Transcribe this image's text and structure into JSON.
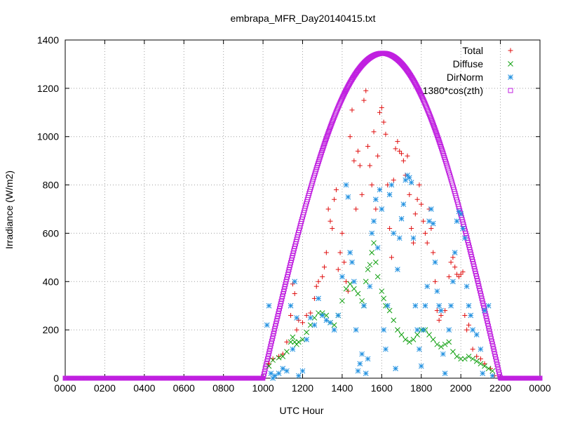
{
  "chart_data": {
    "type": "scatter",
    "title": "embrapa_MFR_Day20140415.txt",
    "xlabel": "UTC Hour",
    "ylabel": "Irradiance (W/m2)",
    "xlim": [
      0,
      2400
    ],
    "ylim": [
      0,
      1400
    ],
    "x_ticks": [
      "0000",
      "0200",
      "0400",
      "0600",
      "0800",
      "1000",
      "1200",
      "1400",
      "1600",
      "1800",
      "2000",
      "2200",
      "0000"
    ],
    "y_ticks": [
      "0",
      "200",
      "400",
      "600",
      "800",
      "1000",
      "1200",
      "1400"
    ],
    "grid": true,
    "legend_position": "top-right",
    "series": [
      {
        "name": "Total",
        "marker": "plus",
        "color": "#e01010",
        "points": [
          [
            1030,
            60
          ],
          [
            1050,
            80
          ],
          [
            1080,
            90
          ],
          [
            1100,
            100
          ],
          [
            1120,
            150
          ],
          [
            1140,
            260
          ],
          [
            1150,
            390
          ],
          [
            1160,
            350
          ],
          [
            1170,
            200
          ],
          [
            1180,
            240
          ],
          [
            1200,
            230
          ],
          [
            1220,
            260
          ],
          [
            1240,
            270
          ],
          [
            1260,
            330
          ],
          [
            1270,
            380
          ],
          [
            1280,
            400
          ],
          [
            1300,
            420
          ],
          [
            1310,
            460
          ],
          [
            1320,
            520
          ],
          [
            1330,
            700
          ],
          [
            1340,
            650
          ],
          [
            1350,
            620
          ],
          [
            1360,
            740
          ],
          [
            1370,
            780
          ],
          [
            1380,
            450
          ],
          [
            1390,
            520
          ],
          [
            1400,
            600
          ],
          [
            1410,
            480
          ],
          [
            1420,
            400
          ],
          [
            1430,
            360
          ],
          [
            1440,
            1000
          ],
          [
            1450,
            1110
          ],
          [
            1460,
            900
          ],
          [
            1470,
            700
          ],
          [
            1480,
            940
          ],
          [
            1490,
            880
          ],
          [
            1500,
            760
          ],
          [
            1510,
            1150
          ],
          [
            1520,
            1190
          ],
          [
            1530,
            960
          ],
          [
            1540,
            880
          ],
          [
            1550,
            800
          ],
          [
            1560,
            1020
          ],
          [
            1570,
            700
          ],
          [
            1580,
            920
          ],
          [
            1590,
            1100
          ],
          [
            1600,
            1120
          ],
          [
            1610,
            1060
          ],
          [
            1620,
            1010
          ],
          [
            1630,
            800
          ],
          [
            1640,
            620
          ],
          [
            1650,
            500
          ],
          [
            1660,
            820
          ],
          [
            1670,
            950
          ],
          [
            1680,
            980
          ],
          [
            1690,
            940
          ],
          [
            1700,
            930
          ],
          [
            1710,
            900
          ],
          [
            1720,
            840
          ],
          [
            1730,
            920
          ],
          [
            1740,
            760
          ],
          [
            1750,
            620
          ],
          [
            1760,
            560
          ],
          [
            1770,
            680
          ],
          [
            1780,
            740
          ],
          [
            1790,
            800
          ],
          [
            1800,
            720
          ],
          [
            1810,
            650
          ],
          [
            1820,
            600
          ],
          [
            1830,
            560
          ],
          [
            1840,
            700
          ],
          [
            1850,
            620
          ],
          [
            1860,
            520
          ],
          [
            1870,
            400
          ],
          [
            1880,
            280
          ],
          [
            1890,
            240
          ],
          [
            1900,
            260
          ],
          [
            1920,
            280
          ],
          [
            1940,
            420
          ],
          [
            1950,
            480
          ],
          [
            1960,
            500
          ],
          [
            1970,
            460
          ],
          [
            1980,
            430
          ],
          [
            1990,
            420
          ],
          [
            2000,
            430
          ],
          [
            2010,
            440
          ],
          [
            2020,
            260
          ],
          [
            2030,
            200
          ],
          [
            2040,
            220
          ],
          [
            2060,
            120
          ],
          [
            2080,
            90
          ],
          [
            2100,
            80
          ],
          [
            2120,
            60
          ],
          [
            2150,
            40
          ],
          [
            2170,
            10
          ]
        ]
      },
      {
        "name": "Diffuse",
        "marker": "cross",
        "color": "#10a010",
        "points": [
          [
            1030,
            50
          ],
          [
            1050,
            75
          ],
          [
            1080,
            85
          ],
          [
            1100,
            90
          ],
          [
            1120,
            110
          ],
          [
            1140,
            150
          ],
          [
            1150,
            170
          ],
          [
            1160,
            150
          ],
          [
            1170,
            140
          ],
          [
            1180,
            150
          ],
          [
            1200,
            160
          ],
          [
            1220,
            190
          ],
          [
            1240,
            220
          ],
          [
            1260,
            250
          ],
          [
            1280,
            270
          ],
          [
            1300,
            270
          ],
          [
            1320,
            260
          ],
          [
            1340,
            230
          ],
          [
            1360,
            220
          ],
          [
            1380,
            260
          ],
          [
            1400,
            320
          ],
          [
            1420,
            370
          ],
          [
            1440,
            390
          ],
          [
            1460,
            370
          ],
          [
            1480,
            350
          ],
          [
            1500,
            320
          ],
          [
            1510,
            300
          ],
          [
            1520,
            400
          ],
          [
            1530,
            450
          ],
          [
            1540,
            470
          ],
          [
            1550,
            520
          ],
          [
            1560,
            560
          ],
          [
            1570,
            480
          ],
          [
            1580,
            420
          ],
          [
            1600,
            360
          ],
          [
            1610,
            330
          ],
          [
            1620,
            300
          ],
          [
            1640,
            280
          ],
          [
            1660,
            240
          ],
          [
            1680,
            200
          ],
          [
            1700,
            180
          ],
          [
            1720,
            160
          ],
          [
            1740,
            150
          ],
          [
            1760,
            160
          ],
          [
            1780,
            180
          ],
          [
            1800,
            200
          ],
          [
            1820,
            200
          ],
          [
            1840,
            180
          ],
          [
            1860,
            160
          ],
          [
            1880,
            140
          ],
          [
            1900,
            130
          ],
          [
            1920,
            140
          ],
          [
            1940,
            150
          ],
          [
            1960,
            110
          ],
          [
            1980,
            90
          ],
          [
            2000,
            80
          ],
          [
            2020,
            80
          ],
          [
            2040,
            90
          ],
          [
            2060,
            80
          ],
          [
            2080,
            70
          ],
          [
            2100,
            60
          ],
          [
            2120,
            50
          ],
          [
            2140,
            40
          ],
          [
            2160,
            30
          ]
        ]
      },
      {
        "name": "DirNorm",
        "marker": "star",
        "color": "#2090e0",
        "points": [
          [
            1020,
            220
          ],
          [
            1030,
            300
          ],
          [
            1040,
            20
          ],
          [
            1050,
            0
          ],
          [
            1060,
            10
          ],
          [
            1080,
            20
          ],
          [
            1100,
            40
          ],
          [
            1120,
            30
          ],
          [
            1140,
            300
          ],
          [
            1150,
            120
          ],
          [
            1160,
            400
          ],
          [
            1170,
            250
          ],
          [
            1180,
            10
          ],
          [
            1200,
            30
          ],
          [
            1220,
            160
          ],
          [
            1240,
            250
          ],
          [
            1260,
            220
          ],
          [
            1280,
            330
          ],
          [
            1300,
            260
          ],
          [
            1320,
            240
          ],
          [
            1340,
            230
          ],
          [
            1360,
            200
          ],
          [
            1380,
            260
          ],
          [
            1400,
            420
          ],
          [
            1420,
            800
          ],
          [
            1430,
            750
          ],
          [
            1440,
            520
          ],
          [
            1450,
            480
          ],
          [
            1460,
            400
          ],
          [
            1470,
            200
          ],
          [
            1480,
            30
          ],
          [
            1490,
            60
          ],
          [
            1500,
            100
          ],
          [
            1510,
            300
          ],
          [
            1520,
            20
          ],
          [
            1530,
            80
          ],
          [
            1540,
            380
          ],
          [
            1550,
            600
          ],
          [
            1560,
            650
          ],
          [
            1570,
            740
          ],
          [
            1580,
            540
          ],
          [
            1590,
            780
          ],
          [
            1600,
            700
          ],
          [
            1610,
            200
          ],
          [
            1620,
            120
          ],
          [
            1630,
            300
          ],
          [
            1640,
            760
          ],
          [
            1650,
            800
          ],
          [
            1660,
            600
          ],
          [
            1670,
            40
          ],
          [
            1680,
            450
          ],
          [
            1690,
            580
          ],
          [
            1700,
            660
          ],
          [
            1710,
            720
          ],
          [
            1720,
            820
          ],
          [
            1730,
            840
          ],
          [
            1740,
            830
          ],
          [
            1750,
            810
          ],
          [
            1760,
            580
          ],
          [
            1770,
            300
          ],
          [
            1780,
            200
          ],
          [
            1790,
            120
          ],
          [
            1800,
            50
          ],
          [
            1810,
            200
          ],
          [
            1820,
            300
          ],
          [
            1830,
            380
          ],
          [
            1840,
            650
          ],
          [
            1850,
            700
          ],
          [
            1860,
            640
          ],
          [
            1870,
            480
          ],
          [
            1880,
            360
          ],
          [
            1890,
            300
          ],
          [
            1900,
            280
          ],
          [
            1910,
            100
          ],
          [
            1920,
            20
          ],
          [
            1940,
            200
          ],
          [
            1950,
            300
          ],
          [
            1960,
            400
          ],
          [
            1970,
            520
          ],
          [
            1980,
            650
          ],
          [
            1990,
            690
          ],
          [
            2000,
            680
          ],
          [
            2010,
            620
          ],
          [
            2020,
            580
          ],
          [
            2030,
            380
          ],
          [
            2040,
            300
          ],
          [
            2050,
            260
          ],
          [
            2060,
            200
          ],
          [
            2080,
            180
          ],
          [
            2100,
            120
          ],
          [
            2110,
            20
          ],
          [
            2120,
            280
          ],
          [
            2140,
            300
          ],
          [
            2160,
            10
          ]
        ]
      },
      {
        "name": "1380*cos(zth)",
        "marker": "square",
        "color": "#c020e0",
        "curve": {
          "x_start": 1000,
          "x_peak": 1605,
          "x_end": 2200,
          "y_peak": 1345
        }
      }
    ]
  }
}
